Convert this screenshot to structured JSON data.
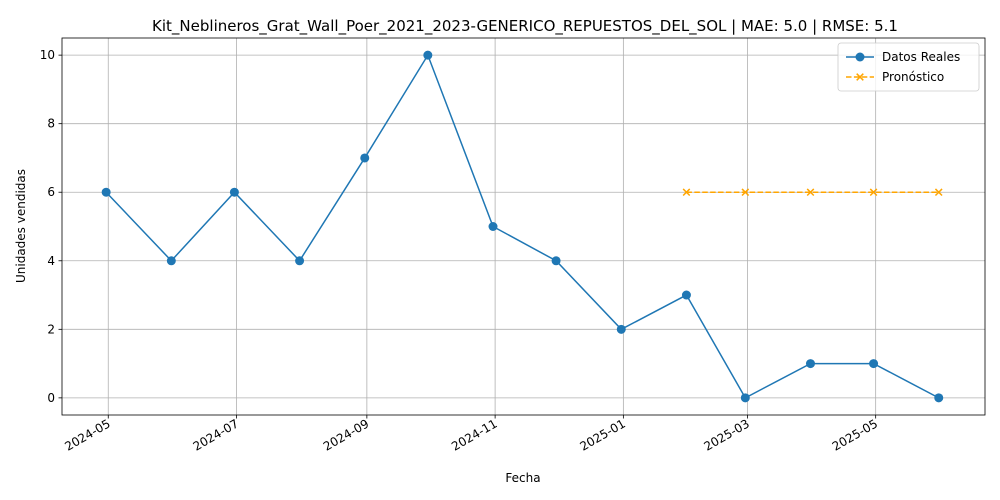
{
  "chart_data": {
    "type": "line",
    "title": "Kit_Neblineros_Grat_Wall_Poer_2021_2023-GENERICO_REPUESTOS_DEL_SOL | MAE: 5.0 | RMSE: 5.1",
    "xlabel": "Fecha",
    "ylabel": "Unidades vendidas",
    "ylim": [
      -0.5,
      10.5
    ],
    "xlim": [
      "2024-04-09",
      "2025-06-22"
    ],
    "x_ticks": [
      "2024-05",
      "2024-07",
      "2024-09",
      "2024-11",
      "2025-01",
      "2025-03",
      "2025-05"
    ],
    "y_ticks": [
      0,
      2,
      4,
      6,
      8,
      10
    ],
    "grid": true,
    "legend_position": "top-right",
    "series": [
      {
        "name": "Datos Reales",
        "color": "#1f77b4",
        "marker": "circle",
        "line": "solid",
        "x": [
          "2024-04-30",
          "2024-05-31",
          "2024-06-30",
          "2024-07-31",
          "2024-08-31",
          "2024-09-30",
          "2024-10-31",
          "2024-11-30",
          "2024-12-31",
          "2025-01-31",
          "2025-02-28",
          "2025-03-31",
          "2025-04-30",
          "2025-05-31"
        ],
        "values": [
          6,
          4,
          6,
          4,
          7,
          10,
          5,
          4,
          2,
          3,
          0,
          1,
          1,
          0
        ]
      },
      {
        "name": "Pronóstico",
        "color": "#ffa500",
        "marker": "x",
        "line": "dashed",
        "x": [
          "2025-01-31",
          "2025-02-28",
          "2025-03-31",
          "2025-04-30",
          "2025-05-31"
        ],
        "values": [
          6,
          6,
          6,
          6,
          6
        ]
      }
    ]
  }
}
